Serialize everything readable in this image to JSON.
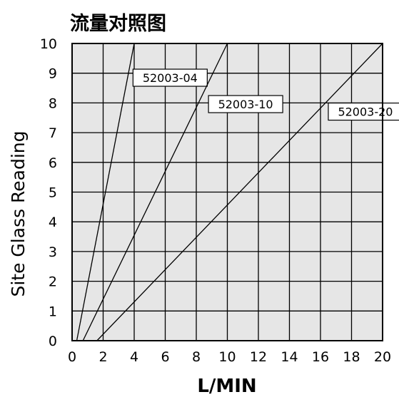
{
  "chart_data": {
    "type": "line",
    "title": "流量对照图",
    "xlabel": "L/MIN",
    "ylabel": "Site Glass Reading",
    "xlim": [
      0,
      20
    ],
    "ylim": [
      0,
      10
    ],
    "x_ticks": [
      "0",
      "2",
      "4",
      "6",
      "8",
      "10",
      "12",
      "14",
      "16",
      "18",
      "20"
    ],
    "y_ticks": [
      "0",
      "1",
      "2",
      "3",
      "4",
      "5",
      "6",
      "7",
      "8",
      "9",
      "10"
    ],
    "grid": true,
    "plot_background": "#e6e6e6",
    "line_color": "#000000",
    "series": [
      {
        "name": "52003-04",
        "x": [
          0.3,
          4.0
        ],
        "y": [
          0,
          10
        ]
      },
      {
        "name": "52003-10",
        "x": [
          0.7,
          10.0
        ],
        "y": [
          0,
          10
        ]
      },
      {
        "name": "52003-20",
        "x": [
          1.6,
          20.0
        ],
        "y": [
          0,
          10
        ]
      }
    ]
  }
}
